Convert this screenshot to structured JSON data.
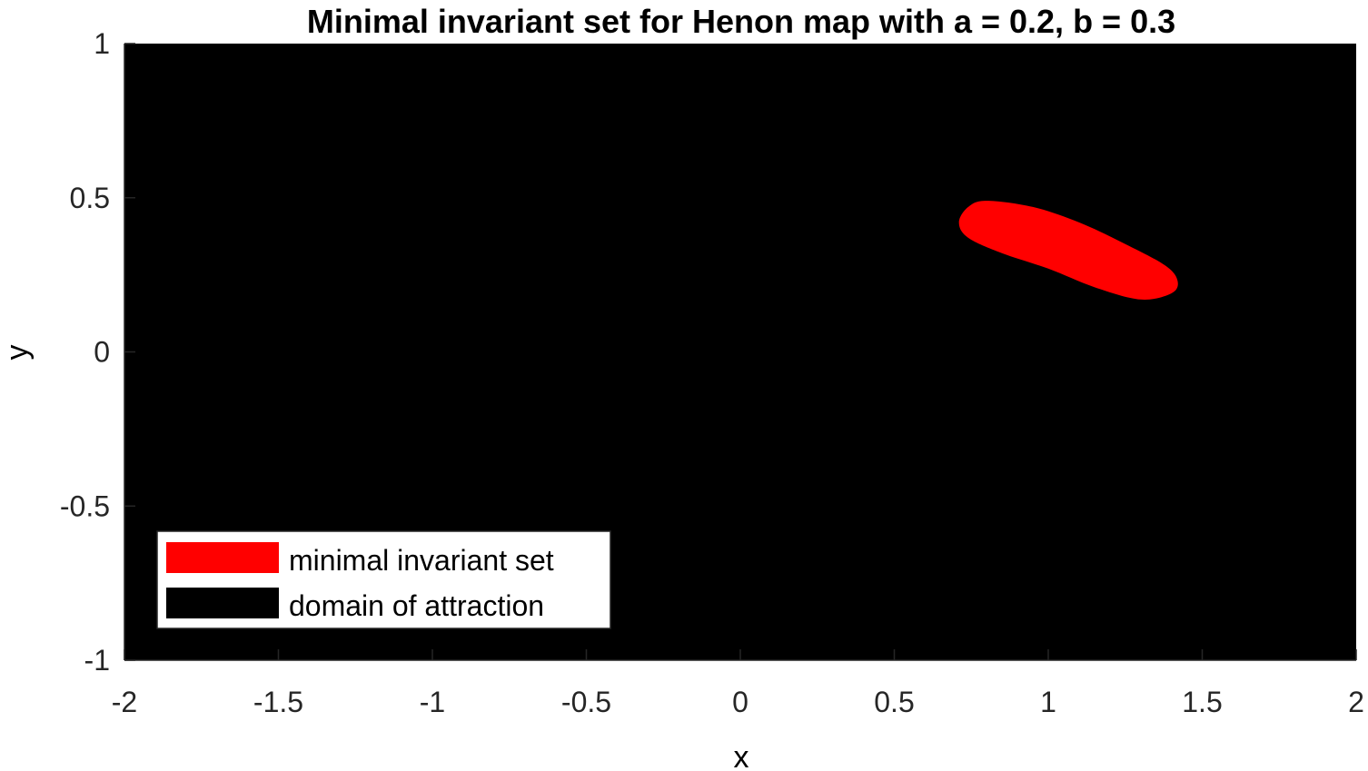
{
  "chart_data": {
    "type": "area",
    "title": "Minimal invariant set for Henon map with a = 0.2, b = 0.3",
    "xlabel": "x",
    "ylabel": "y",
    "xlim": [
      -2,
      2
    ],
    "ylim": [
      -1,
      1
    ],
    "xticks": [
      -2,
      -1.5,
      -1,
      -0.5,
      0,
      0.5,
      1,
      1.5,
      2
    ],
    "xtick_labels": [
      "-2",
      "-1.5",
      "-1",
      "-0.5",
      "0",
      "0.5",
      "1",
      "1.5",
      "2"
    ],
    "yticks": [
      -1,
      -0.5,
      0,
      0.5,
      1
    ],
    "ytick_labels": [
      "-1",
      "-0.5",
      "0",
      "0.5",
      "1"
    ],
    "grid": false,
    "legend_position": "bottom-left",
    "series": [
      {
        "name": "minimal invariant set",
        "color": "#ff0000",
        "shape": "elongated blob",
        "boundary_x": [
          0.8,
          0.95,
          1.1,
          1.25,
          1.38,
          1.42,
          1.4,
          1.3,
          1.15,
          1.0,
          0.85,
          0.74,
          0.71,
          0.74
        ],
        "boundary_y": [
          0.49,
          0.47,
          0.42,
          0.35,
          0.28,
          0.23,
          0.19,
          0.17,
          0.21,
          0.27,
          0.32,
          0.37,
          0.42,
          0.47
        ]
      },
      {
        "name": "domain of attraction",
        "color": "#000000",
        "shape": "fills plotted region",
        "x_range": [
          -2,
          2
        ],
        "y_range": [
          -1,
          1
        ]
      }
    ]
  }
}
